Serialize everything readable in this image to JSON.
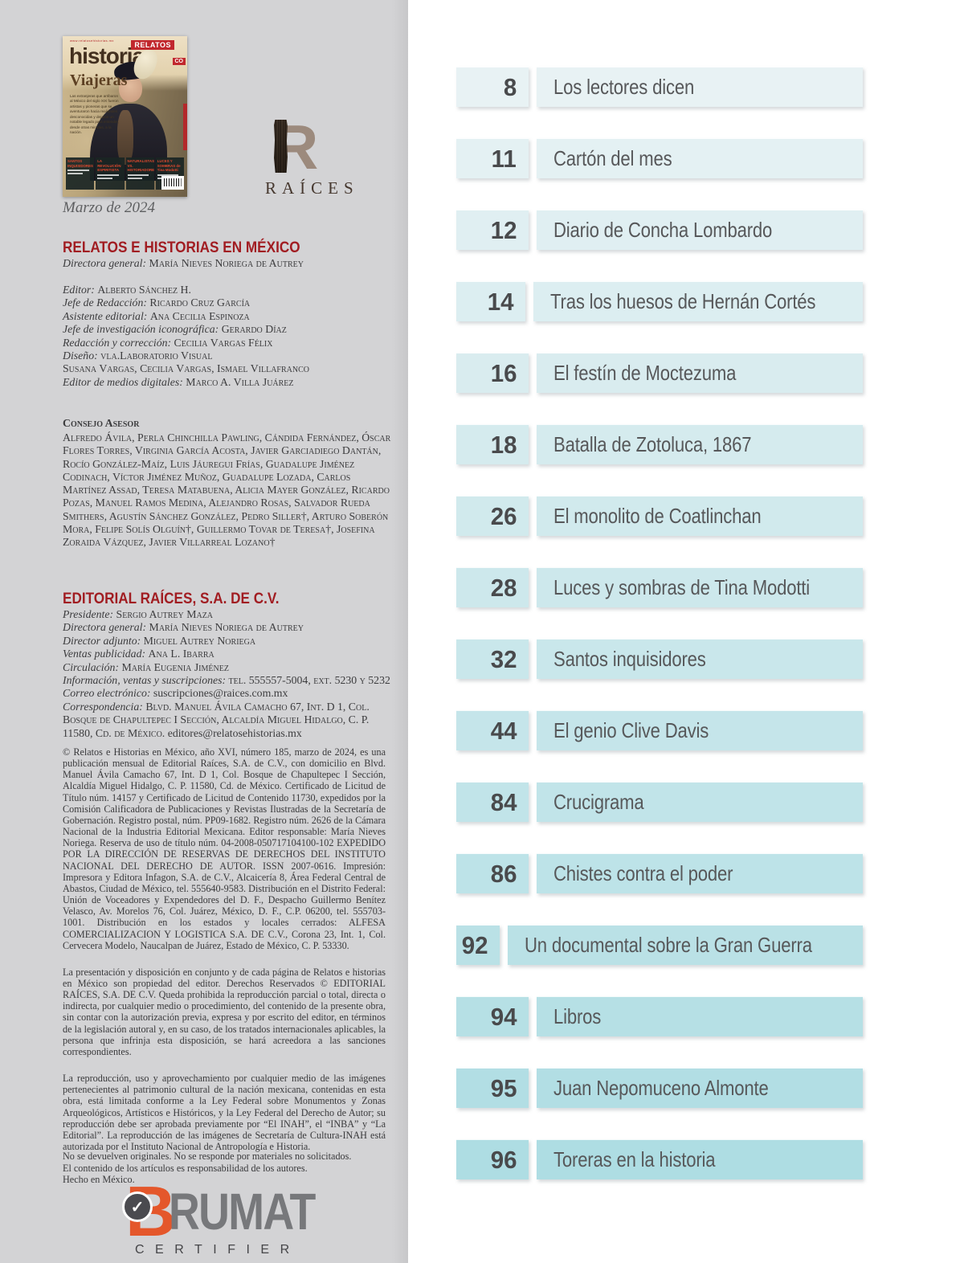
{
  "page": {
    "panel_background": "#d3d3d5",
    "accent_red": "#a11d22",
    "toc_text": "#57585a"
  },
  "cover": {
    "date_caption": "Marzo de 2024",
    "url": "www.relatosehistorias.mx",
    "masthead_relatos": "RELATOS",
    "masthead_historias": "historias",
    "masthead_mexico": "CO",
    "headline": "Viajeras",
    "deck": "Las extranjeras que arribaron al México del siglo XIX fueron artistas y pioneras que se aventuraron hacia realidades desconocidas y dejaron un notable legado para entender, desde otras miradas, a la nación.",
    "teasers": [
      {
        "title": "SANTOS INQUISIDORES"
      },
      {
        "title": "LA REVOLUCIÓN ESPIRITISTA"
      },
      {
        "title": "NATURALISTAS VS. HISTORIADORES"
      },
      {
        "title": "LUCES Y SOMBRAS de Tina Modotti"
      }
    ]
  },
  "raices_logo": {
    "letter": "R",
    "wordmark": "RAÍCES"
  },
  "masthead": {
    "title": "RELATOS E HISTORIAS EN MÉXICO",
    "head_lines": [
      {
        "label": "Directora general: ",
        "value_sc": "María Nieves Noriega de Autrey"
      }
    ],
    "lines": [
      {
        "label": "Editor: ",
        "value_sc": "Alberto Sánchez H."
      },
      {
        "label": "Jefe de Redacción: ",
        "value_sc": "Ricardo Cruz García"
      },
      {
        "label": "Asistente editorial: ",
        "value_sc": "Ana Cecilia Espinoza"
      },
      {
        "label": "Jefe de investigación iconográfica: ",
        "value_sc": "Gerardo Díaz"
      },
      {
        "label": "Redacción y corrección: ",
        "value_sc": "Cecilia Vargas Félix"
      },
      {
        "label": "Diseño: ",
        "value_sc": "vla.Laboratorio Visual"
      },
      {
        "label": "",
        "value_sc": "Susana Vargas, Cecilia Vargas, Ismael Villafranco"
      },
      {
        "label": "Editor de medios digitales: ",
        "value_sc": "Marco A. Villa Juárez"
      }
    ]
  },
  "consejo": {
    "heading": "Consejo Asesor",
    "members": "Alfredo Ávila, Perla Chinchilla Pawling, Cándida Fernández, Óscar Flores Torres, Virginia García Acosta, Javier Garciadiego Dantán, Rocío González-Maíz, Luis Jáuregui Frías, Guadalupe Jiménez Codinach, Víctor Jiménez Muñoz, Guadalupe Lozada, Carlos Martínez Assad, Teresa Matabuena, Alicia Mayer González, Ricardo Pozas, Manuel Ramos Medina, Alejandro Rosas, Salvador Rueda Smithers, Agustín Sánchez González, Pedro Siller†, Arturo Soberón Mora, Felipe Solís Olguín†, Guillermo Tovar de Teresa†, Josefina Zoraida Vázquez, Javier Villarreal Lozano†"
  },
  "editorial": {
    "title": "EDITORIAL RAÍCES, S.A. DE C.V.",
    "lines": [
      {
        "label": "Presidente: ",
        "value_sc": "Sergio Autrey Maza"
      },
      {
        "label": "Directora general: ",
        "value_sc": "María Nieves Noriega de Autrey"
      },
      {
        "label": "Director adjunto: ",
        "value_sc": "Miguel Autrey Noriega"
      },
      {
        "label": "Ventas publicidad: ",
        "value_sc": "Ana L. Ibarra"
      },
      {
        "label": "Circulación: ",
        "value_sc": "María Eugenia Jiménez"
      },
      {
        "label": "Información, ventas y suscripciones: ",
        "value_sc": "tel. 555557-5004, ext. 5230 y 5232"
      },
      {
        "label": "Correo electrónico: ",
        "value_plain": "suscripciones@raices.com.mx"
      },
      {
        "label": "Correspondencia: ",
        "value_sc": "Blvd. Manuel Ávila Camacho 67, Int. D 1, Col. Bosque de Chapultepec I Sección, Alcaldía Miguel Hidalgo, C. P. 11580, Cd. de México.",
        "value_plain": " editores@relatosehistorias.mx"
      }
    ]
  },
  "legal": {
    "paragraphs": [
      "© Relatos e Historias en México, año XVI, número 185, marzo de 2024, es una publicación mensual de Editorial Raíces, S.A. de C.V., con domicilio en Blvd. Manuel Ávila Camacho 67, Int. D 1, Col. Bosque de Chapultepec I Sección, Alcaldía Miguel Hidalgo, C. P. 11580, Cd. de México. Certificado de Licitud de Título núm. 14157 y Certificado de Licitud de Contenido 11730, expedidos por la Comisión Calificadora de Publicaciones y Revistas Ilustradas de la Secretaría de Gobernación. Registro postal, núm. PP09-1682. Registro núm. 2626 de la Cámara Nacional de la Industria Editorial Mexicana. Editor responsable: María Nieves Noriega. Reserva de uso de título núm. 04-2008-050717104100-102 EXPEDIDO POR LA DIRECCIÓN DE RESERVAS DE DERECHOS DEL INSTITUTO NACIONAL DEL DERECHO DE AUTOR. ISSN 2007-0616. Impresión: Impresora y Editora Infagon, S.A. de C.V., Alcaicería 8, Área Federal Central de Abastos, Ciudad de México, tel. 555640-9583. Distribución en el Distrito Federal: Unión de Voceadores y Expendedores del D. F., Despacho Guillermo Benítez Velasco, Av. Morelos 76, Col. Juárez, México, D. F., C.P. 06200, tel. 555703-1001. Distribución en los estados y locales cerrados: ALFESA COMERCIALIZACION Y LOGISTICA S.A. DE C.V., Corona 23, Int. 1, Col. Cervecera Modelo, Naucalpan de Juárez, Estado de México, C. P. 53330.",
      "La presentación y disposición en conjunto y de cada página de Relatos e historias en México son propiedad del editor. Derechos Reservados © EDITORIAL RAÍCES, S.A. DE C.V. Queda prohibida la reproducción parcial o total, directa o indirecta, por cualquier medio o procedimiento, del contenido de la presente obra, sin contar con la autorización previa, expresa y por escrito del editor, en términos de la legislación autoral y, en su caso, de los tratados internacionales aplicables, la persona que infrinja esta disposición, se hará acreedora a las sanciones correspondientes.",
      "La reproducción, uso y aprovechamiento por cualquier medio de las imágenes pertenecientes al patrimonio cultural de la nación mexicana, contenidas en esta obra, está limitada conforme a la Ley Federal sobre Monumentos y Zonas Arqueológicos, Artísticos e Históricos, y la Ley Federal del Derecho de Autor; su reproducción debe ser aprobada previamente por “El INAH”, el “INBA” y “La Editorial”. La reproducción de las imágenes de Secretaría de Cultura-INAH está autorizada por el Instituto Nacional de Antropología e Historia."
    ],
    "notes": [
      "No se devuelven originales. No se responde por materiales no solicitados.",
      "El contenido de los artículos es responsabilidad de los autores.",
      "Hecho en México."
    ]
  },
  "brumat": {
    "b_letter": "B",
    "check": "✓",
    "name": "RUMAT",
    "sub": "CERTIFIER",
    "orange": "#e4572b"
  },
  "toc": {
    "color_start": "#e8f2f4",
    "color_end": "#aedde3",
    "items": [
      {
        "number": "8",
        "title": "Los lectores dicen"
      },
      {
        "number": "11",
        "title": "Cartón del mes"
      },
      {
        "number": "12",
        "title": "Diario de Concha Lombardo"
      },
      {
        "number": "14",
        "title": "Tras los huesos de Hernán Cortés"
      },
      {
        "number": "16",
        "title": "El festín de Moctezuma"
      },
      {
        "number": "18",
        "title": "Batalla de Zotoluca, 1867"
      },
      {
        "number": "26",
        "title": "El monolito de Coatlinchan"
      },
      {
        "number": "28",
        "title": "Luces y sombras de Tina Modotti"
      },
      {
        "number": "32",
        "title": "Santos inquisidores"
      },
      {
        "number": "44",
        "title": "El genio Clive Davis"
      },
      {
        "number": "84",
        "title": "Crucigrama"
      },
      {
        "number": "86",
        "title": "Chistes contra el poder"
      },
      {
        "number": "92",
        "title": "Un documental sobre la Gran Guerra"
      },
      {
        "number": "94",
        "title": "Libros"
      },
      {
        "number": "95",
        "title": "Juan Nepomuceno Almonte"
      },
      {
        "number": "96",
        "title": "Toreras en la historia"
      }
    ]
  }
}
